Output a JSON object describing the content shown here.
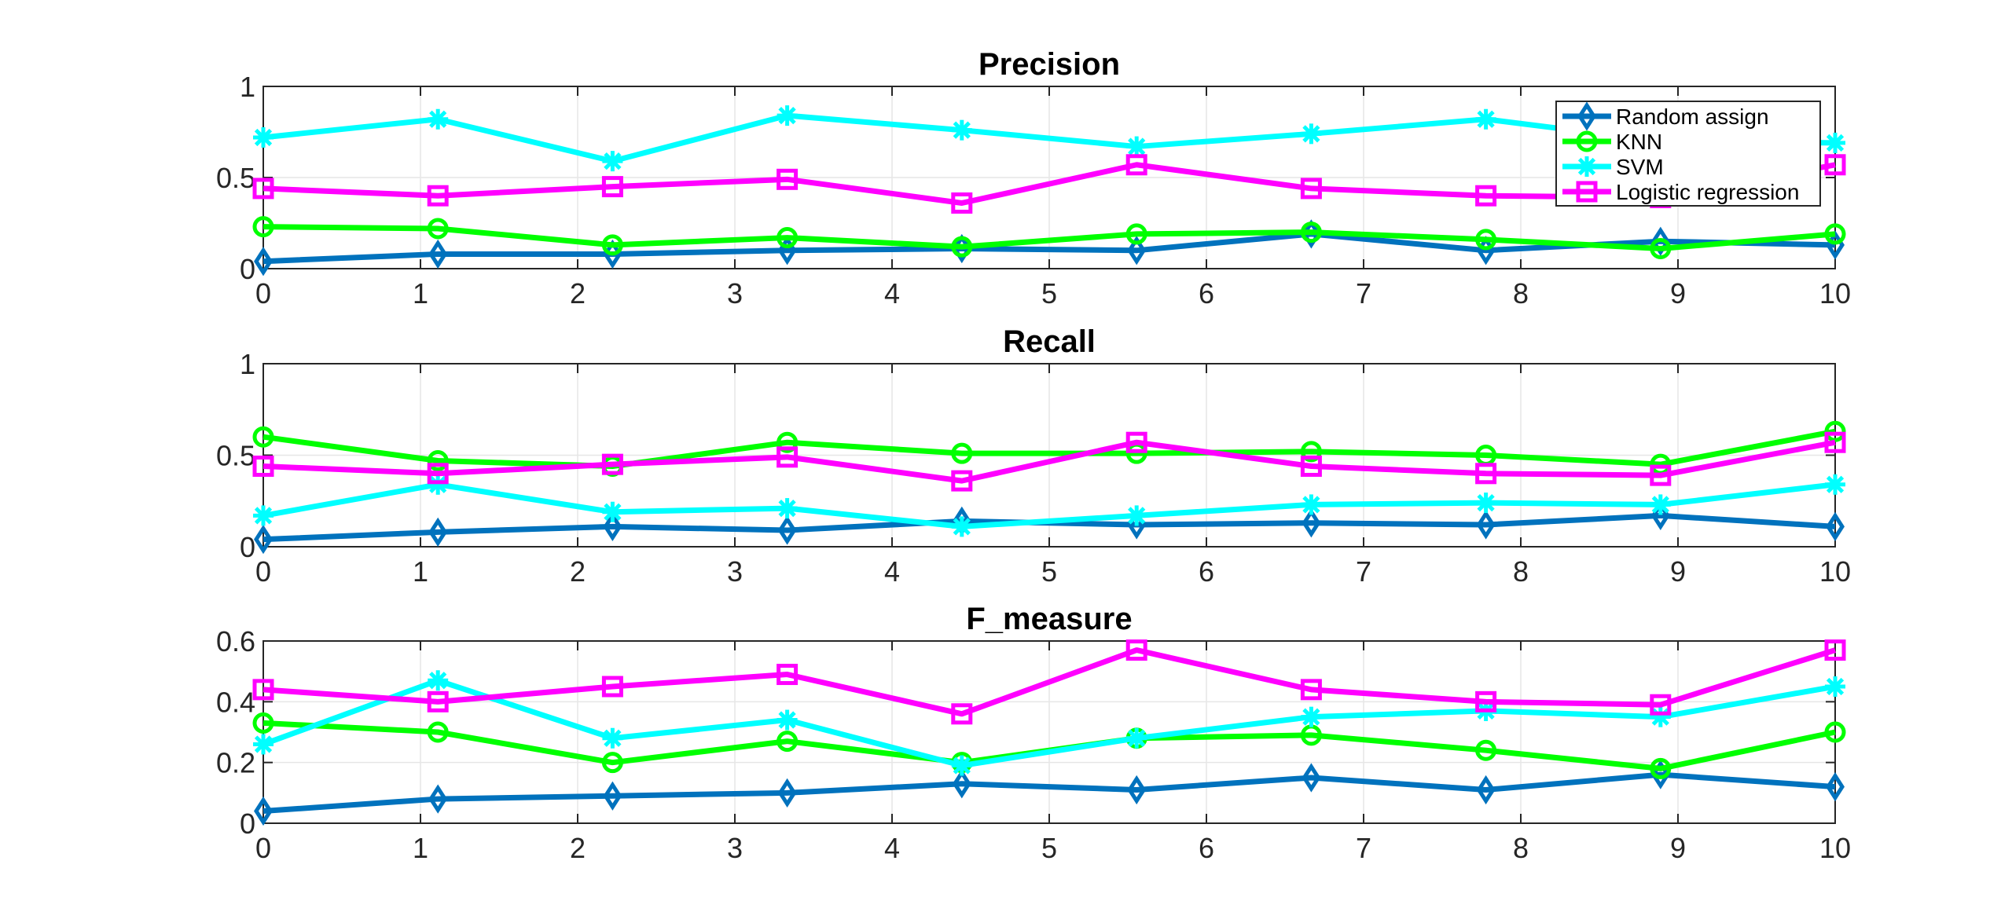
{
  "chart_data": [
    {
      "type": "line",
      "title": "Precision",
      "xlabel": "",
      "ylabel": "",
      "xlim": [
        0,
        10
      ],
      "ylim": [
        0,
        1
      ],
      "xticks": [
        0,
        1,
        2,
        3,
        4,
        5,
        6,
        7,
        8,
        9,
        10
      ],
      "xtick_labels": [
        "0",
        "1",
        "2",
        "3",
        "4",
        "5",
        "6",
        "7",
        "8",
        "9",
        "10"
      ],
      "yticks": [
        0,
        0.5,
        1
      ],
      "ytick_labels": [
        "0",
        "0.5",
        "1"
      ],
      "grid": true,
      "legend": "top-right",
      "x": [
        0,
        1.111,
        2.222,
        3.333,
        4.444,
        5.556,
        6.667,
        7.778,
        8.889,
        10
      ],
      "series": [
        {
          "name": "Random assign",
          "color": "#0072BD",
          "marker": "diamond",
          "values": [
            0.04,
            0.08,
            0.08,
            0.1,
            0.11,
            0.1,
            0.19,
            0.1,
            0.15,
            0.13
          ]
        },
        {
          "name": "KNN",
          "color": "#00FF00",
          "marker": "circle",
          "values": [
            0.23,
            0.22,
            0.13,
            0.17,
            0.12,
            0.19,
            0.2,
            0.16,
            0.11,
            0.19
          ]
        },
        {
          "name": "SVM",
          "color": "#00FFFF",
          "marker": "asterisk",
          "values": [
            0.72,
            0.82,
            0.59,
            0.84,
            0.76,
            0.67,
            0.74,
            0.82,
            0.7,
            0.69
          ]
        },
        {
          "name": "Logistic regression",
          "color": "#FF00FF",
          "marker": "square",
          "values": [
            0.44,
            0.4,
            0.45,
            0.49,
            0.36,
            0.57,
            0.44,
            0.4,
            0.39,
            0.57
          ]
        }
      ]
    },
    {
      "type": "line",
      "title": "Recall",
      "xlabel": "",
      "ylabel": "",
      "xlim": [
        0,
        10
      ],
      "ylim": [
        0,
        1
      ],
      "xticks": [
        0,
        1,
        2,
        3,
        4,
        5,
        6,
        7,
        8,
        9,
        10
      ],
      "xtick_labels": [
        "0",
        "1",
        "2",
        "3",
        "4",
        "5",
        "6",
        "7",
        "8",
        "9",
        "10"
      ],
      "yticks": [
        0,
        0.5,
        1
      ],
      "ytick_labels": [
        "0",
        "0.5",
        "1"
      ],
      "grid": true,
      "legend": "none",
      "x": [
        0,
        1.111,
        2.222,
        3.333,
        4.444,
        5.556,
        6.667,
        7.778,
        8.889,
        10
      ],
      "series": [
        {
          "name": "Random assign",
          "color": "#0072BD",
          "marker": "diamond",
          "values": [
            0.04,
            0.08,
            0.11,
            0.09,
            0.14,
            0.12,
            0.13,
            0.12,
            0.17,
            0.11
          ]
        },
        {
          "name": "KNN",
          "color": "#00FF00",
          "marker": "circle",
          "values": [
            0.6,
            0.47,
            0.44,
            0.57,
            0.51,
            0.51,
            0.52,
            0.5,
            0.45,
            0.63
          ]
        },
        {
          "name": "SVM",
          "color": "#00FFFF",
          "marker": "asterisk",
          "values": [
            0.17,
            0.34,
            0.19,
            0.21,
            0.11,
            0.17,
            0.23,
            0.24,
            0.23,
            0.34
          ]
        },
        {
          "name": "Logistic regression",
          "color": "#FF00FF",
          "marker": "square",
          "values": [
            0.44,
            0.4,
            0.45,
            0.49,
            0.36,
            0.57,
            0.44,
            0.4,
            0.39,
            0.57
          ]
        }
      ]
    },
    {
      "type": "line",
      "title": "F_measure",
      "xlabel": "",
      "ylabel": "",
      "xlim": [
        0,
        10
      ],
      "ylim": [
        0,
        0.6
      ],
      "xticks": [
        0,
        1,
        2,
        3,
        4,
        5,
        6,
        7,
        8,
        9,
        10
      ],
      "xtick_labels": [
        "0",
        "1",
        "2",
        "3",
        "4",
        "5",
        "6",
        "7",
        "8",
        "9",
        "10"
      ],
      "yticks": [
        0,
        0.2,
        0.4,
        0.6
      ],
      "ytick_labels": [
        "0",
        "0.2",
        "0.4",
        "0.6"
      ],
      "grid": true,
      "legend": "none",
      "x": [
        0,
        1.111,
        2.222,
        3.333,
        4.444,
        5.556,
        6.667,
        7.778,
        8.889,
        10
      ],
      "series": [
        {
          "name": "Random assign",
          "color": "#0072BD",
          "marker": "diamond",
          "values": [
            0.04,
            0.08,
            0.09,
            0.1,
            0.13,
            0.11,
            0.15,
            0.11,
            0.16,
            0.12
          ]
        },
        {
          "name": "KNN",
          "color": "#00FF00",
          "marker": "circle",
          "values": [
            0.33,
            0.3,
            0.2,
            0.27,
            0.2,
            0.28,
            0.29,
            0.24,
            0.18,
            0.3
          ]
        },
        {
          "name": "SVM",
          "color": "#00FFFF",
          "marker": "asterisk",
          "values": [
            0.26,
            0.47,
            0.28,
            0.34,
            0.19,
            0.28,
            0.35,
            0.37,
            0.35,
            0.45
          ]
        },
        {
          "name": "Logistic regression",
          "color": "#FF00FF",
          "marker": "square",
          "values": [
            0.44,
            0.4,
            0.45,
            0.49,
            0.36,
            0.57,
            0.44,
            0.4,
            0.39,
            0.57
          ]
        }
      ]
    }
  ]
}
